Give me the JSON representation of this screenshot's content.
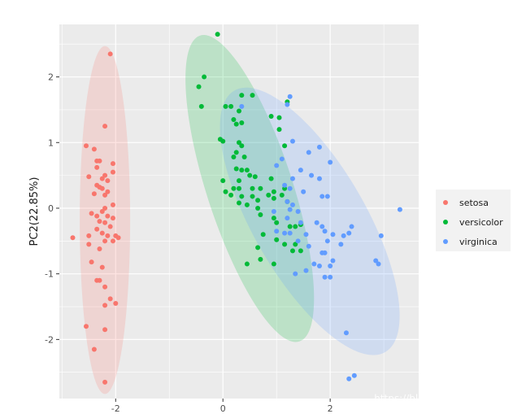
{
  "chart_data": {
    "type": "scatter",
    "title": "",
    "xlabel": "",
    "ylabel": "PC2(22.85%)",
    "xlim": [
      -3.05,
      3.65
    ],
    "ylim": [
      -2.9,
      2.8
    ],
    "x_ticks": [
      -2,
      0,
      2
    ],
    "y_ticks": [
      -2,
      -1,
      0,
      1,
      2
    ],
    "grid": true,
    "legend_position": "right",
    "series": [
      {
        "name": "setosa",
        "color": "#F8766D",
        "ellipse": {
          "cx": -2.2,
          "cy": -0.18,
          "rx": 0.47,
          "ry": 2.65,
          "angle": 0
        },
        "points": [
          [
            -2.1,
            2.35
          ],
          [
            -2.2,
            1.25
          ],
          [
            -2.55,
            0.95
          ],
          [
            -2.4,
            0.9
          ],
          [
            -2.35,
            0.72
          ],
          [
            -2.3,
            0.72
          ],
          [
            -2.35,
            0.62
          ],
          [
            -2.05,
            0.68
          ],
          [
            -2.05,
            0.55
          ],
          [
            -2.2,
            0.5
          ],
          [
            -2.25,
            0.45
          ],
          [
            -2.5,
            0.48
          ],
          [
            -2.15,
            0.42
          ],
          [
            -2.35,
            0.35
          ],
          [
            -2.3,
            0.32
          ],
          [
            -2.25,
            0.3
          ],
          [
            -2.15,
            0.25
          ],
          [
            -2.4,
            0.22
          ],
          [
            -2.2,
            0.2
          ],
          [
            -2.05,
            0.05
          ],
          [
            -2.2,
            0.0
          ],
          [
            -2.25,
            -0.05
          ],
          [
            -2.45,
            -0.08
          ],
          [
            -2.35,
            -0.12
          ],
          [
            -2.15,
            -0.12
          ],
          [
            -2.05,
            -0.15
          ],
          [
            -2.3,
            -0.2
          ],
          [
            -2.2,
            -0.22
          ],
          [
            -2.1,
            -0.28
          ],
          [
            -2.35,
            -0.32
          ],
          [
            -2.25,
            -0.38
          ],
          [
            -2.5,
            -0.42
          ],
          [
            -2.8,
            -0.45
          ],
          [
            -2.15,
            -0.42
          ],
          [
            -2.0,
            -0.42
          ],
          [
            -1.95,
            -0.45
          ],
          [
            -2.05,
            -0.5
          ],
          [
            -2.2,
            -0.5
          ],
          [
            -2.5,
            -0.55
          ],
          [
            -2.3,
            -0.62
          ],
          [
            -2.45,
            -0.82
          ],
          [
            -2.25,
            -0.9
          ],
          [
            -2.35,
            -1.1
          ],
          [
            -2.3,
            -1.1
          ],
          [
            -2.2,
            -1.2
          ],
          [
            -2.1,
            -1.38
          ],
          [
            -2.0,
            -1.45
          ],
          [
            -2.2,
            -1.48
          ],
          [
            -2.55,
            -1.8
          ],
          [
            -2.2,
            -1.85
          ],
          [
            -2.4,
            -2.15
          ],
          [
            -2.2,
            -2.65
          ]
        ]
      },
      {
        "name": "versicolor",
        "color": "#00BA38",
        "ellipse": {
          "cx": 0.5,
          "cy": 0.3,
          "rx": 0.8,
          "ry": 2.45,
          "angle": -18
        },
        "points": [
          [
            -0.1,
            2.65
          ],
          [
            -0.35,
            2.0
          ],
          [
            -0.45,
            1.85
          ],
          [
            -0.4,
            1.55
          ],
          [
            0.05,
            1.55
          ],
          [
            0.35,
            1.72
          ],
          [
            0.55,
            1.72
          ],
          [
            0.15,
            1.55
          ],
          [
            0.3,
            1.48
          ],
          [
            0.2,
            1.35
          ],
          [
            0.35,
            1.3
          ],
          [
            0.25,
            1.28
          ],
          [
            0.9,
            1.4
          ],
          [
            1.2,
            1.62
          ],
          [
            1.05,
            1.38
          ],
          [
            1.05,
            1.2
          ],
          [
            -0.05,
            1.05
          ],
          [
            0.0,
            1.02
          ],
          [
            0.3,
            1.0
          ],
          [
            0.35,
            0.95
          ],
          [
            0.25,
            0.85
          ],
          [
            0.2,
            0.78
          ],
          [
            0.4,
            0.78
          ],
          [
            1.15,
            0.95
          ],
          [
            0.25,
            0.6
          ],
          [
            0.35,
            0.58
          ],
          [
            0.45,
            0.58
          ],
          [
            0.3,
            0.42
          ],
          [
            0.5,
            0.5
          ],
          [
            0.6,
            0.48
          ],
          [
            0.9,
            0.45
          ],
          [
            0.0,
            0.42
          ],
          [
            0.2,
            0.3
          ],
          [
            0.3,
            0.3
          ],
          [
            0.55,
            0.3
          ],
          [
            0.7,
            0.3
          ],
          [
            0.95,
            0.25
          ],
          [
            1.15,
            0.3
          ],
          [
            0.05,
            0.25
          ],
          [
            0.15,
            0.2
          ],
          [
            0.35,
            0.18
          ],
          [
            0.55,
            0.18
          ],
          [
            0.65,
            0.12
          ],
          [
            0.85,
            0.2
          ],
          [
            0.95,
            0.15
          ],
          [
            1.1,
            0.2
          ],
          [
            0.3,
            0.08
          ],
          [
            0.45,
            0.05
          ],
          [
            0.65,
            0.0
          ],
          [
            1.2,
            0.1
          ],
          [
            0.7,
            -0.1
          ],
          [
            0.95,
            -0.15
          ],
          [
            1.0,
            -0.22
          ],
          [
            1.25,
            -0.28
          ],
          [
            1.35,
            -0.28
          ],
          [
            1.45,
            -0.25
          ],
          [
            0.75,
            -0.4
          ],
          [
            1.0,
            -0.48
          ],
          [
            1.15,
            -0.55
          ],
          [
            1.35,
            -0.55
          ],
          [
            0.65,
            -0.6
          ],
          [
            1.3,
            -0.65
          ],
          [
            0.7,
            -0.78
          ],
          [
            0.95,
            -0.85
          ],
          [
            0.45,
            -0.85
          ],
          [
            1.45,
            -0.65
          ]
        ]
      },
      {
        "name": "virginica",
        "color": "#619CFF",
        "ellipse": {
          "cx": 1.62,
          "cy": -0.2,
          "rx": 1.05,
          "ry": 2.3,
          "angle": -30
        },
        "points": [
          [
            1.25,
            1.7
          ],
          [
            0.35,
            1.55
          ],
          [
            1.2,
            1.58
          ],
          [
            1.3,
            1.02
          ],
          [
            1.8,
            0.93
          ],
          [
            1.6,
            0.85
          ],
          [
            2.0,
            0.7
          ],
          [
            1.1,
            0.75
          ],
          [
            1.0,
            0.65
          ],
          [
            1.45,
            0.58
          ],
          [
            1.65,
            0.5
          ],
          [
            1.8,
            0.45
          ],
          [
            1.3,
            0.45
          ],
          [
            1.15,
            0.35
          ],
          [
            1.25,
            0.3
          ],
          [
            1.5,
            0.25
          ],
          [
            1.85,
            0.18
          ],
          [
            1.95,
            0.18
          ],
          [
            1.2,
            0.1
          ],
          [
            1.3,
            0.05
          ],
          [
            0.95,
            -0.05
          ],
          [
            1.25,
            -0.02
          ],
          [
            1.4,
            -0.05
          ],
          [
            1.2,
            -0.15
          ],
          [
            1.45,
            -0.22
          ],
          [
            1.75,
            -0.22
          ],
          [
            1.85,
            -0.28
          ],
          [
            2.4,
            -0.28
          ],
          [
            3.3,
            -0.02
          ],
          [
            1.0,
            -0.35
          ],
          [
            1.15,
            -0.38
          ],
          [
            1.25,
            -0.38
          ],
          [
            1.55,
            -0.4
          ],
          [
            1.9,
            -0.35
          ],
          [
            2.05,
            -0.4
          ],
          [
            2.25,
            -0.42
          ],
          [
            2.35,
            -0.38
          ],
          [
            2.95,
            -0.42
          ],
          [
            1.4,
            -0.5
          ],
          [
            1.95,
            -0.5
          ],
          [
            2.2,
            -0.55
          ],
          [
            1.6,
            -0.58
          ],
          [
            1.85,
            -0.68
          ],
          [
            1.9,
            -0.68
          ],
          [
            2.05,
            -0.8
          ],
          [
            2.85,
            -0.8
          ],
          [
            2.9,
            -0.85
          ],
          [
            1.7,
            -0.85
          ],
          [
            1.8,
            -0.88
          ],
          [
            2.0,
            -0.88
          ],
          [
            1.55,
            -0.95
          ],
          [
            1.35,
            -1.0
          ],
          [
            1.9,
            -1.05
          ],
          [
            2.0,
            -1.05
          ],
          [
            2.3,
            -1.9
          ],
          [
            2.35,
            -2.6
          ],
          [
            2.45,
            -2.55
          ]
        ]
      }
    ]
  },
  "watermark": "https://blog.csdn.net/xj4math"
}
